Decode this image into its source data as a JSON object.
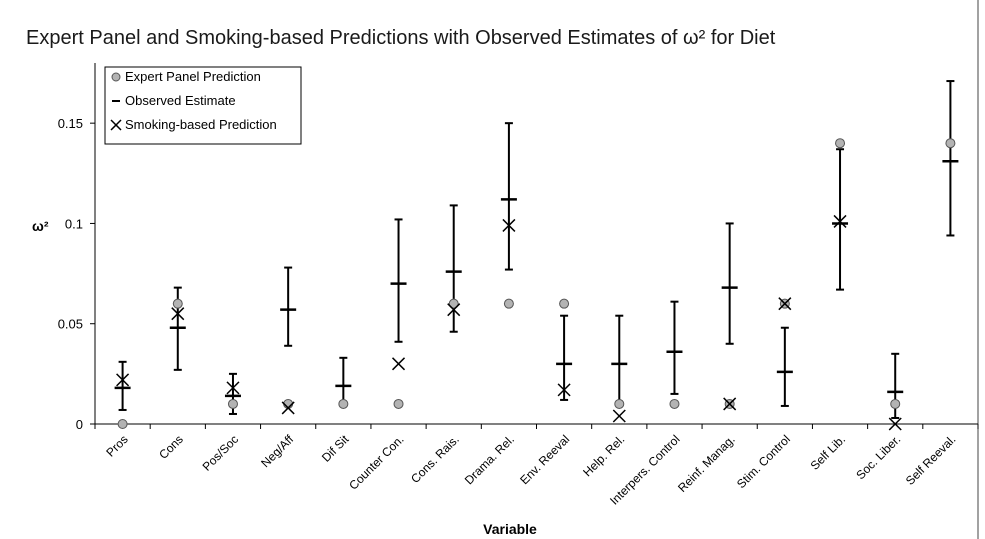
{
  "chart_data": {
    "type": "scatter",
    "title": "Expert Panel and Smoking-based Predictions with Observed Estimates of ω² for Diet",
    "xlabel": "Variable",
    "ylabel": "ω²",
    "ylim": [
      0,
      0.18
    ],
    "yticks": [
      "0",
      "0.05",
      "0.1",
      "0.15"
    ],
    "ytick_values": [
      0,
      0.05,
      0.1,
      0.15
    ],
    "grid": false,
    "legend_position": "top-left",
    "categories": [
      "Pros",
      "Cons",
      "Pos/Soc",
      "Neg/Aff",
      "Dif Sit",
      "Counter Con.",
      "Cons. Rais.",
      "Drama. Rel.",
      "Env. Reeval",
      "Help. Rel.",
      "Interpers. Control",
      "Reinf. Manag.",
      "Stim. Control",
      "Self Lib.",
      "Soc. Liber.",
      "Self Reeval."
    ],
    "series": [
      {
        "name": "Expert Panel Prediction",
        "marker": "circle",
        "color": "#b3b3b3",
        "values": [
          0,
          0.06,
          0.01,
          0.01,
          0.01,
          0.01,
          0.06,
          0.06,
          0.06,
          0.01,
          0.01,
          0.01,
          0.06,
          0.14,
          0.01,
          0.14
        ]
      },
      {
        "name": "Observed Estimate",
        "marker": "dash",
        "color": "#000000",
        "values": [
          0.018,
          0.048,
          0.014,
          0.057,
          0.019,
          0.07,
          0.076,
          0.112,
          0.03,
          0.03,
          0.036,
          0.068,
          0.026,
          0.1,
          0.016,
          0.131
        ],
        "lower": [
          0.007,
          0.027,
          0.005,
          0.039,
          0.01,
          0.041,
          0.046,
          0.077,
          0.012,
          0.01,
          0.015,
          0.04,
          0.009,
          0.067,
          0.003,
          0.094
        ],
        "upper": [
          0.031,
          0.068,
          0.025,
          0.078,
          0.033,
          0.102,
          0.109,
          0.15,
          0.054,
          0.054,
          0.061,
          0.1,
          0.048,
          0.137,
          0.035,
          0.171
        ]
      },
      {
        "name": "Smoking-based Prediction",
        "marker": "x",
        "color": "#000000",
        "values": [
          0.022,
          0.055,
          0.018,
          0.008,
          null,
          0.03,
          0.057,
          0.099,
          0.017,
          0.004,
          null,
          0.01,
          0.06,
          0.101,
          0,
          null
        ]
      }
    ]
  }
}
